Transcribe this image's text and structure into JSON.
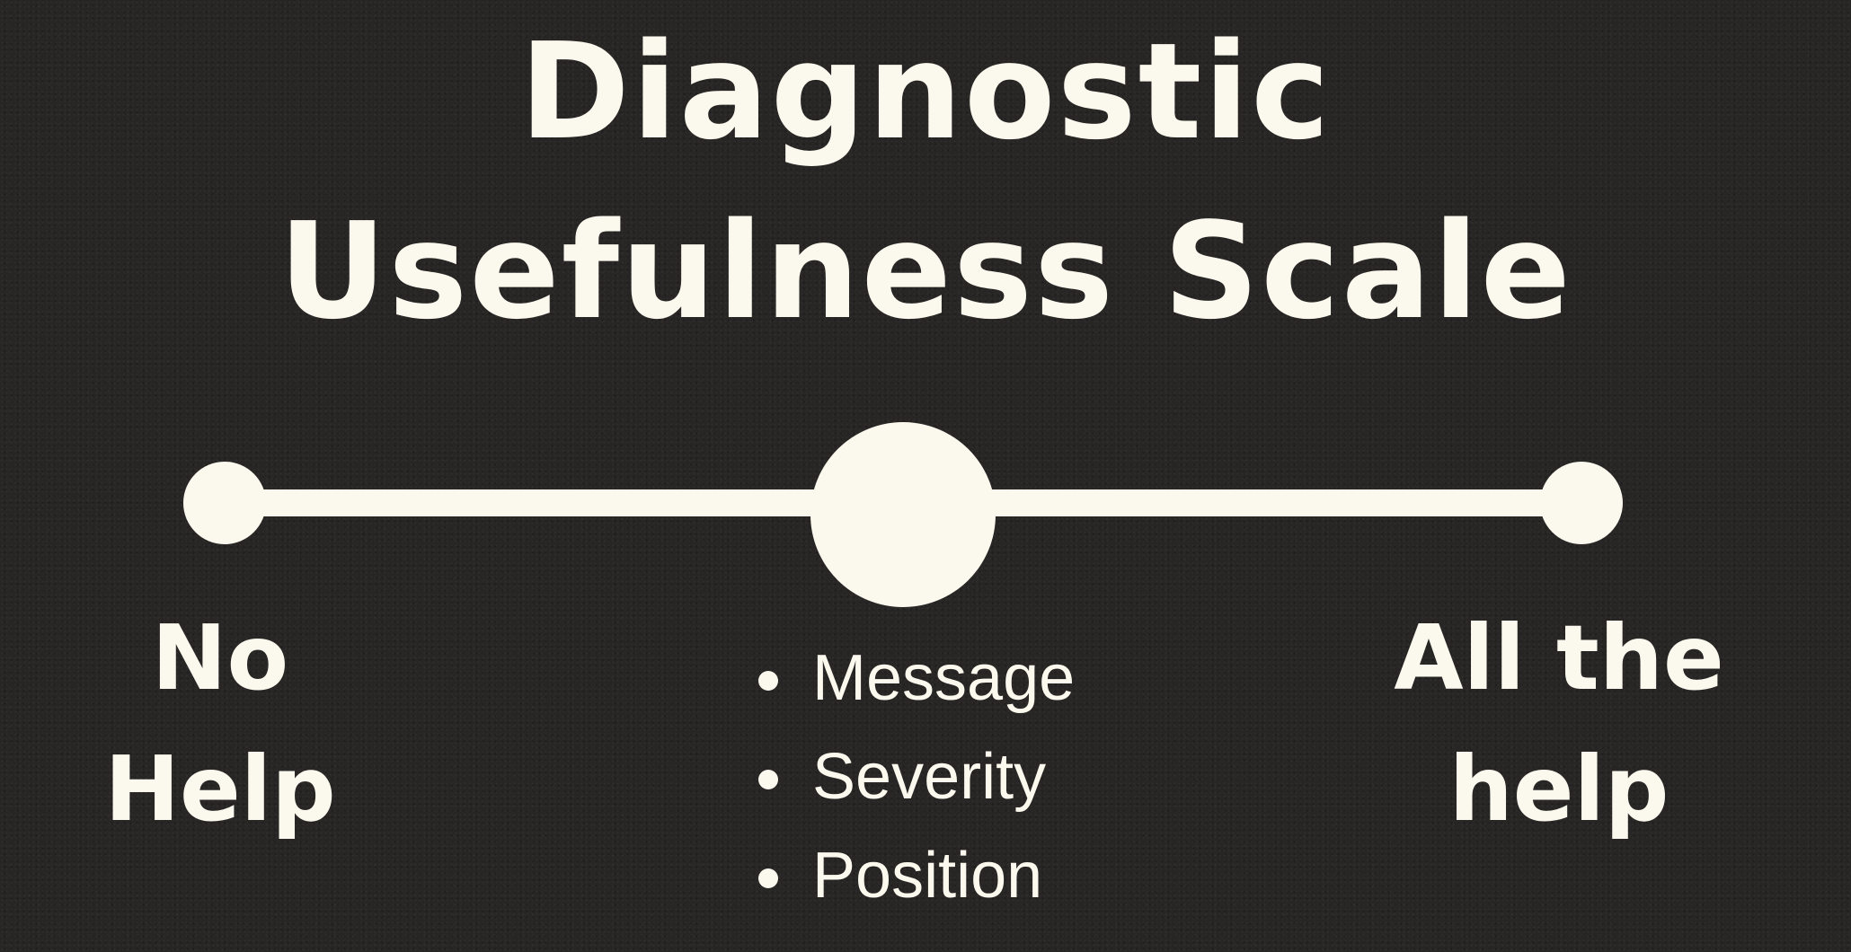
{
  "title": {
    "line1": "Diagnostic",
    "line2": "Usefulness Scale"
  },
  "scale": {
    "left_label": {
      "line1": "No",
      "line2": "Help"
    },
    "right_label": {
      "line1": "All the",
      "line2": "help"
    },
    "center_items": [
      "Message",
      "Severity",
      "Position"
    ]
  },
  "colors": {
    "background": "#272625",
    "foreground": "#fbf9ee"
  }
}
